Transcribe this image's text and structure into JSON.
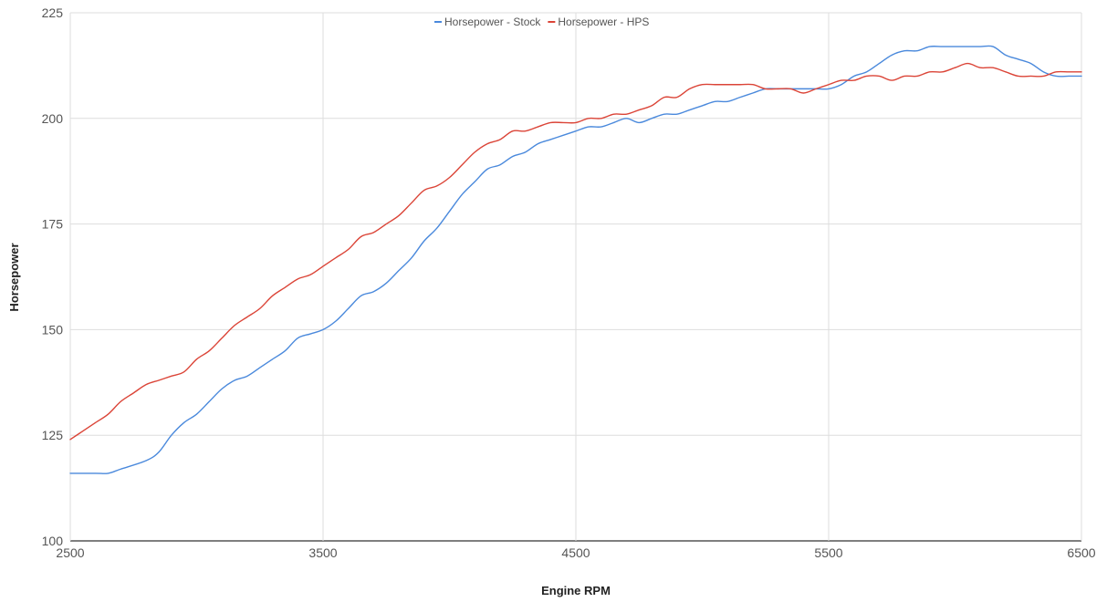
{
  "chart_data": {
    "type": "line",
    "title": "",
    "xlabel": "Engine RPM",
    "ylabel": "Horsepower",
    "xlim": [
      2500,
      6500
    ],
    "ylim": [
      100,
      225
    ],
    "x_ticks": [
      2500,
      3500,
      4500,
      5500,
      6500
    ],
    "x_tick_labels": [
      "2500",
      "3500",
      "4500",
      "5500",
      "6500"
    ],
    "y_ticks": [
      100,
      125,
      150,
      175,
      200,
      225
    ],
    "y_tick_labels": [
      "100",
      "125",
      "150",
      "175",
      "200",
      "225"
    ],
    "grid": true,
    "legend_position": "top-center",
    "series": [
      {
        "name": "Horsepower - Stock",
        "color": "#4a89dc",
        "points": [
          [
            2500,
            116
          ],
          [
            2600,
            116
          ],
          [
            2650,
            116
          ],
          [
            2700,
            117
          ],
          [
            2800,
            119
          ],
          [
            2850,
            121
          ],
          [
            2900,
            125
          ],
          [
            2950,
            128
          ],
          [
            3000,
            130
          ],
          [
            3050,
            133
          ],
          [
            3100,
            136
          ],
          [
            3150,
            138
          ],
          [
            3200,
            139
          ],
          [
            3250,
            141
          ],
          [
            3300,
            143
          ],
          [
            3350,
            145
          ],
          [
            3400,
            148
          ],
          [
            3450,
            149
          ],
          [
            3500,
            150
          ],
          [
            3550,
            152
          ],
          [
            3600,
            155
          ],
          [
            3650,
            158
          ],
          [
            3700,
            159
          ],
          [
            3750,
            161
          ],
          [
            3800,
            164
          ],
          [
            3850,
            167
          ],
          [
            3900,
            171
          ],
          [
            3950,
            174
          ],
          [
            4000,
            178
          ],
          [
            4050,
            182
          ],
          [
            4100,
            185
          ],
          [
            4150,
            188
          ],
          [
            4200,
            189
          ],
          [
            4250,
            191
          ],
          [
            4300,
            192
          ],
          [
            4350,
            194
          ],
          [
            4400,
            195
          ],
          [
            4450,
            196
          ],
          [
            4500,
            197
          ],
          [
            4550,
            198
          ],
          [
            4600,
            198
          ],
          [
            4650,
            199
          ],
          [
            4700,
            200
          ],
          [
            4750,
            199
          ],
          [
            4800,
            200
          ],
          [
            4850,
            201
          ],
          [
            4900,
            201
          ],
          [
            4950,
            202
          ],
          [
            5000,
            203
          ],
          [
            5050,
            204
          ],
          [
            5100,
            204
          ],
          [
            5150,
            205
          ],
          [
            5200,
            206
          ],
          [
            5250,
            207
          ],
          [
            5300,
            207
          ],
          [
            5350,
            207
          ],
          [
            5400,
            207
          ],
          [
            5450,
            207
          ],
          [
            5500,
            207
          ],
          [
            5550,
            208
          ],
          [
            5600,
            210
          ],
          [
            5650,
            211
          ],
          [
            5700,
            213
          ],
          [
            5750,
            215
          ],
          [
            5800,
            216
          ],
          [
            5850,
            216
          ],
          [
            5900,
            217
          ],
          [
            5950,
            217
          ],
          [
            6000,
            217
          ],
          [
            6050,
            217
          ],
          [
            6100,
            217
          ],
          [
            6150,
            217
          ],
          [
            6200,
            215
          ],
          [
            6250,
            214
          ],
          [
            6300,
            213
          ],
          [
            6350,
            211
          ],
          [
            6400,
            210
          ],
          [
            6450,
            210
          ],
          [
            6500,
            210
          ]
        ]
      },
      {
        "name": "Horsepower - HPS",
        "color": "#db4437",
        "points": [
          [
            2500,
            124
          ],
          [
            2550,
            126
          ],
          [
            2600,
            128
          ],
          [
            2650,
            130
          ],
          [
            2700,
            133
          ],
          [
            2750,
            135
          ],
          [
            2800,
            137
          ],
          [
            2850,
            138
          ],
          [
            2900,
            139
          ],
          [
            2950,
            140
          ],
          [
            3000,
            143
          ],
          [
            3050,
            145
          ],
          [
            3100,
            148
          ],
          [
            3150,
            151
          ],
          [
            3200,
            153
          ],
          [
            3250,
            155
          ],
          [
            3300,
            158
          ],
          [
            3350,
            160
          ],
          [
            3400,
            162
          ],
          [
            3450,
            163
          ],
          [
            3500,
            165
          ],
          [
            3550,
            167
          ],
          [
            3600,
            169
          ],
          [
            3650,
            172
          ],
          [
            3700,
            173
          ],
          [
            3750,
            175
          ],
          [
            3800,
            177
          ],
          [
            3850,
            180
          ],
          [
            3900,
            183
          ],
          [
            3950,
            184
          ],
          [
            4000,
            186
          ],
          [
            4050,
            189
          ],
          [
            4100,
            192
          ],
          [
            4150,
            194
          ],
          [
            4200,
            195
          ],
          [
            4250,
            197
          ],
          [
            4300,
            197
          ],
          [
            4350,
            198
          ],
          [
            4400,
            199
          ],
          [
            4450,
            199
          ],
          [
            4500,
            199
          ],
          [
            4550,
            200
          ],
          [
            4600,
            200
          ],
          [
            4650,
            201
          ],
          [
            4700,
            201
          ],
          [
            4750,
            202
          ],
          [
            4800,
            203
          ],
          [
            4850,
            205
          ],
          [
            4900,
            205
          ],
          [
            4950,
            207
          ],
          [
            5000,
            208
          ],
          [
            5050,
            208
          ],
          [
            5100,
            208
          ],
          [
            5150,
            208
          ],
          [
            5200,
            208
          ],
          [
            5250,
            207
          ],
          [
            5300,
            207
          ],
          [
            5350,
            207
          ],
          [
            5400,
            206
          ],
          [
            5450,
            207
          ],
          [
            5500,
            208
          ],
          [
            5550,
            209
          ],
          [
            5600,
            209
          ],
          [
            5650,
            210
          ],
          [
            5700,
            210
          ],
          [
            5750,
            209
          ],
          [
            5800,
            210
          ],
          [
            5850,
            210
          ],
          [
            5900,
            211
          ],
          [
            5950,
            211
          ],
          [
            6000,
            212
          ],
          [
            6050,
            213
          ],
          [
            6100,
            212
          ],
          [
            6150,
            212
          ],
          [
            6200,
            211
          ],
          [
            6250,
            210
          ],
          [
            6300,
            210
          ],
          [
            6350,
            210
          ],
          [
            6400,
            211
          ],
          [
            6450,
            211
          ],
          [
            6500,
            211
          ]
        ]
      }
    ]
  }
}
